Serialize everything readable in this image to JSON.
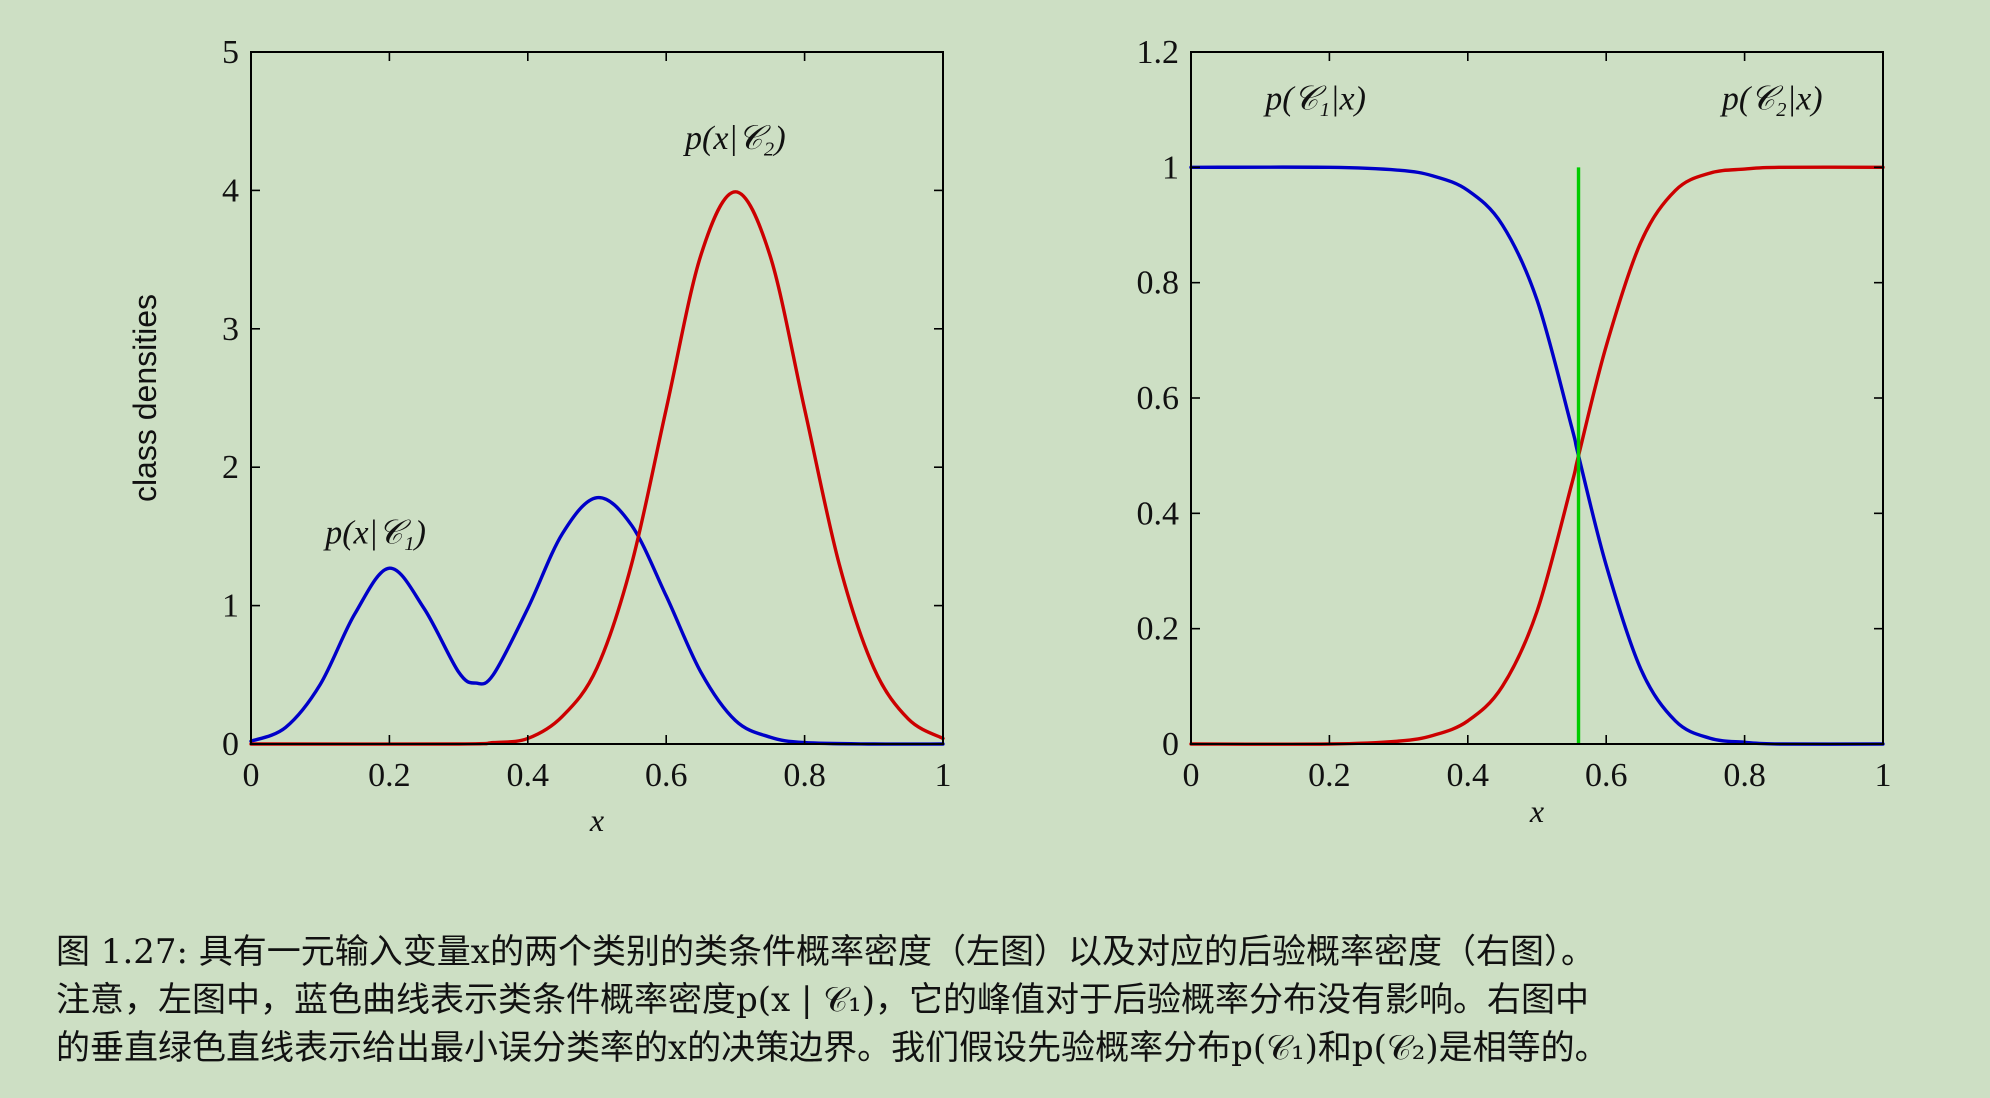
{
  "chart_data": [
    {
      "type": "line",
      "ylabel": "class densities",
      "xlabel": "x",
      "xlim": [
        0,
        1
      ],
      "ylim": [
        0,
        5
      ],
      "xticks": [
        "0",
        "0.2",
        "0.4",
        "0.6",
        "0.8",
        "1"
      ],
      "yticks": [
        "0",
        "1",
        "2",
        "3",
        "4",
        "5"
      ],
      "grid": false,
      "series": [
        {
          "name": "p(x|C1)",
          "color": "#0000c8",
          "x": [
            0,
            0.05,
            0.1,
            0.15,
            0.2,
            0.25,
            0.3,
            0.325,
            0.35,
            0.4,
            0.45,
            0.5,
            0.55,
            0.6,
            0.65,
            0.7,
            0.75,
            0.8,
            0.9,
            1.0
          ],
          "y": [
            0.02,
            0.12,
            0.43,
            0.94,
            1.27,
            0.98,
            0.52,
            0.44,
            0.5,
            0.98,
            1.52,
            1.78,
            1.58,
            1.07,
            0.52,
            0.17,
            0.05,
            0.01,
            0,
            0
          ]
        },
        {
          "name": "p(x|C2)",
          "color": "#cc0000",
          "x": [
            0,
            0.3,
            0.35,
            0.4,
            0.45,
            0.5,
            0.55,
            0.6,
            0.65,
            0.7,
            0.75,
            0.8,
            0.85,
            0.9,
            0.95,
            1.0
          ],
          "y": [
            0,
            0,
            0.01,
            0.04,
            0.2,
            0.55,
            1.3,
            2.42,
            3.53,
            3.99,
            3.53,
            2.42,
            1.3,
            0.55,
            0.18,
            0.04
          ]
        }
      ],
      "annotations": [
        {
          "text": "p(x|𝒞₁)",
          "x": 0.18,
          "y": 1.45
        },
        {
          "text": "p(x|𝒞₂)",
          "x": 0.7,
          "y": 4.3
        }
      ]
    },
    {
      "type": "line",
      "xlabel": "x",
      "xlim": [
        0,
        1
      ],
      "ylim": [
        0,
        1.2
      ],
      "xticks": [
        "0",
        "0.2",
        "0.4",
        "0.6",
        "0.8",
        "1"
      ],
      "yticks": [
        "0",
        "0.2",
        "0.4",
        "0.6",
        "0.8",
        "1",
        "1.2"
      ],
      "grid": false,
      "series": [
        {
          "name": "p(C1|x)",
          "color": "#0000c8",
          "x": [
            0,
            0.2,
            0.3,
            0.35,
            0.4,
            0.45,
            0.5,
            0.55,
            0.56,
            0.6,
            0.65,
            0.7,
            0.75,
            0.8,
            0.85,
            1.0
          ],
          "y": [
            1,
            1,
            0.995,
            0.985,
            0.96,
            0.9,
            0.77,
            0.55,
            0.5,
            0.31,
            0.13,
            0.04,
            0.01,
            0.003,
            0,
            0
          ]
        },
        {
          "name": "p(C2|x)",
          "color": "#cc0000",
          "x": [
            0,
            0.2,
            0.3,
            0.35,
            0.4,
            0.45,
            0.5,
            0.55,
            0.56,
            0.6,
            0.65,
            0.7,
            0.75,
            0.8,
            0.85,
            1.0
          ],
          "y": [
            0,
            0,
            0.005,
            0.015,
            0.04,
            0.1,
            0.23,
            0.45,
            0.5,
            0.69,
            0.87,
            0.96,
            0.99,
            0.997,
            1,
            1
          ]
        }
      ],
      "decision_boundary": {
        "x": 0.56,
        "y_range": [
          0,
          1
        ],
        "color": "#00cc00"
      },
      "annotations": [
        {
          "text": "p(𝒞₁|x)",
          "x": 0.18,
          "y": 1.1
        },
        {
          "text": "p(𝒞₂|x)",
          "x": 0.84,
          "y": 1.1
        }
      ]
    }
  ],
  "caption": {
    "line1": "图 1.27: 具有一元输入变量x的两个类别的类条件概率密度（左图）以及对应的后验概率密度（右图）。",
    "line2": "注意，左图中，蓝色曲线表示类条件概率密度p(x | 𝒞₁)，它的峰值对于后验概率分布没有影响。右图中",
    "line3": "的垂直绿色直线表示给出最小误分类率的x的决策边界。我们假设先验概率分布p(𝒞₁)和p(𝒞₂)是相等的。"
  }
}
